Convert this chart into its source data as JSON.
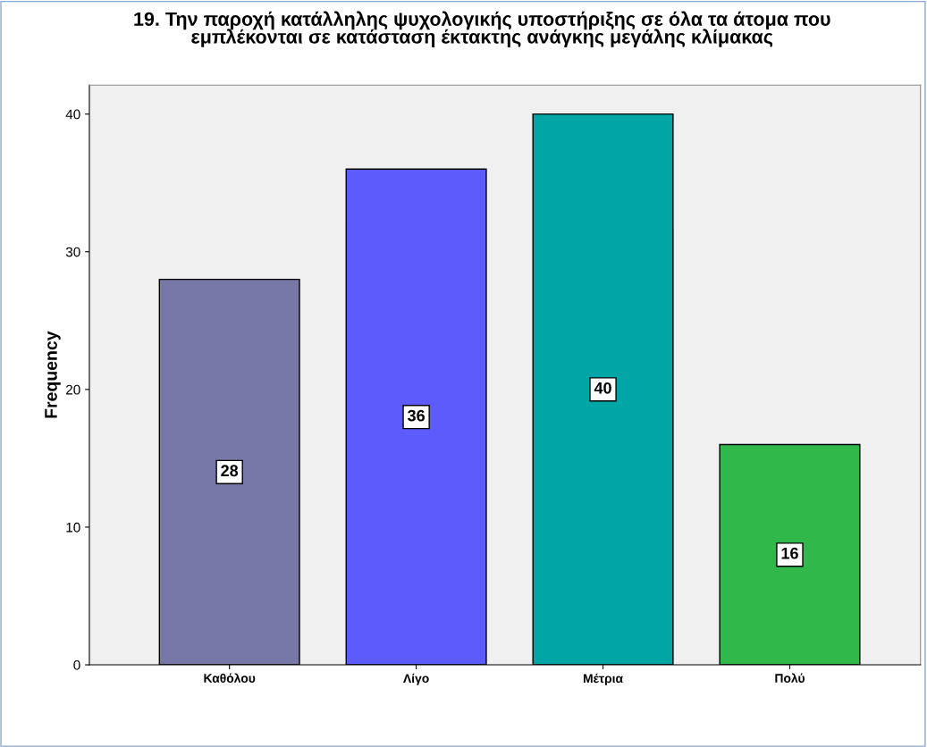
{
  "chart_data": {
    "type": "bar",
    "title": "19. Την παροχή κατάλληλης ψυχολογικής υποστήριξης σε όλα τα άτομα που\nεμπλέκονται σε κατάσταση έκτακτης ανάγκης μεγάλης κλίμακας",
    "ylabel": "Frequency",
    "categories": [
      "Καθόλου",
      "Λίγο",
      "Μέτρια",
      "Πολύ"
    ],
    "values": [
      28,
      36,
      40,
      16
    ],
    "colors": [
      "#7878a8",
      "#5c5cfc",
      "#00a6a6",
      "#30b84a"
    ],
    "ylim": [
      0,
      42.1
    ],
    "yticks": [
      0,
      10,
      20,
      30,
      40
    ],
    "data_labels": true,
    "grid": false,
    "legend": false
  }
}
